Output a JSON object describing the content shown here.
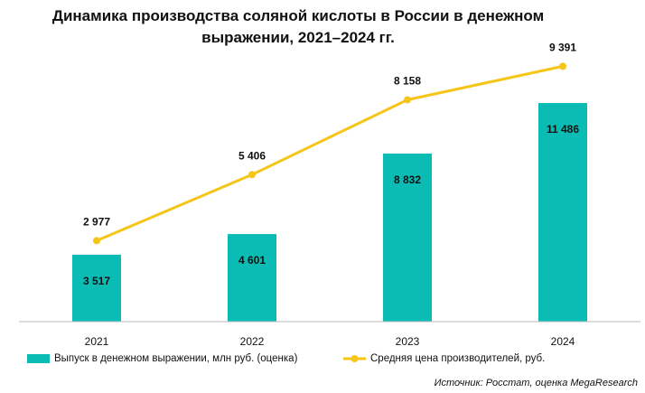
{
  "chart_data": {
    "type": "bar-line",
    "title": "Динамика производства соляной кислоты в России в денежном выражении, 2021–2024 гг.",
    "categories": [
      "2021",
      "2022",
      "2023",
      "2024"
    ],
    "series": [
      {
        "name": "Выпуск в денежном выражении, млн руб. (оценка)",
        "type": "bar",
        "color": "#0bbcb4",
        "values": [
          3517,
          4601,
          8832,
          11486
        ],
        "value_labels": [
          "3 517",
          "4 601",
          "8 832",
          "11 486"
        ]
      },
      {
        "name": "Средняя цена производителей, руб.",
        "type": "line",
        "axis": "y2",
        "color": "#f5c518",
        "values": [
          2977,
          5406,
          8158,
          9391
        ],
        "value_labels": [
          "2 977",
          "5 406",
          "8 158",
          "9 391"
        ]
      }
    ],
    "ylim": [
      0,
      15000
    ],
    "y2lim": [
      0,
      10500
    ],
    "source": "Источник: Росстат, оценка MegaResearch"
  }
}
